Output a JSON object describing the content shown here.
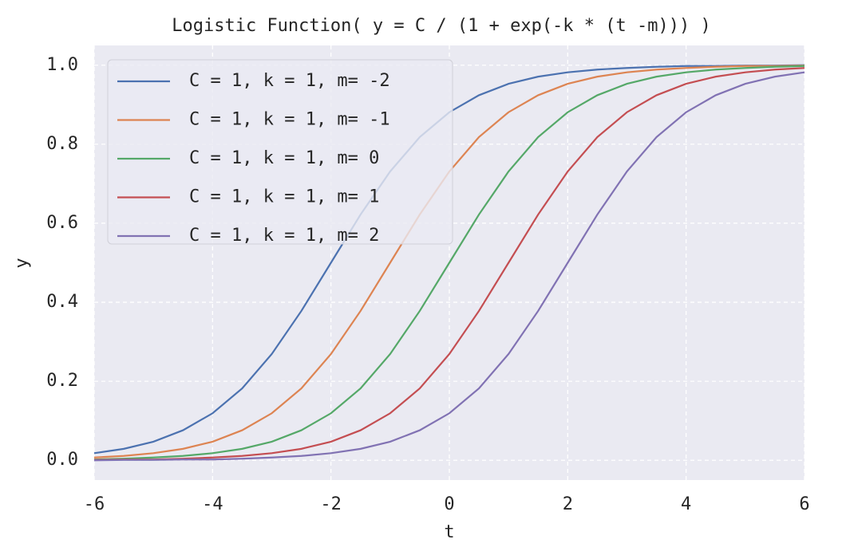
{
  "chart_data": {
    "type": "line",
    "title": "Logistic Function( y = C / (1 + exp(-k * (t -m))) )",
    "x_label": "t",
    "y_label": "y",
    "x": [
      -6,
      -5.5,
      -5,
      -4.5,
      -4,
      -3.5,
      -3,
      -2.5,
      -2,
      -1.5,
      -1,
      -0.5,
      0,
      0.5,
      1,
      1.5,
      2,
      2.5,
      3,
      3.5,
      4,
      4.5,
      5,
      5.5,
      6
    ],
    "series": [
      {
        "name": "C = 1, k = 1, m= -2",
        "color": "#4c72b0",
        "values": [
          0.018,
          0.029,
          0.047,
          0.076,
          0.119,
          0.182,
          0.269,
          0.378,
          0.5,
          0.622,
          0.731,
          0.818,
          0.881,
          0.924,
          0.953,
          0.971,
          0.982,
          0.989,
          0.993,
          0.996,
          0.998,
          0.998,
          0.999,
          0.999,
          1.0
        ]
      },
      {
        "name": "C = 1, k = 1, m= -1",
        "color": "#dd8452",
        "values": [
          0.007,
          0.011,
          0.018,
          0.029,
          0.047,
          0.076,
          0.119,
          0.182,
          0.269,
          0.378,
          0.5,
          0.622,
          0.731,
          0.818,
          0.881,
          0.924,
          0.953,
          0.971,
          0.982,
          0.989,
          0.993,
          0.996,
          0.998,
          0.998,
          0.999
        ]
      },
      {
        "name": "C = 1, k = 1, m= 0",
        "color": "#55a868",
        "values": [
          0.002,
          0.004,
          0.007,
          0.011,
          0.018,
          0.029,
          0.047,
          0.076,
          0.119,
          0.182,
          0.269,
          0.378,
          0.5,
          0.622,
          0.731,
          0.818,
          0.881,
          0.924,
          0.953,
          0.971,
          0.982,
          0.989,
          0.993,
          0.996,
          0.998
        ]
      },
      {
        "name": "C = 1, k = 1, m= 1",
        "color": "#c44e52",
        "values": [
          0.001,
          0.002,
          0.002,
          0.004,
          0.007,
          0.011,
          0.018,
          0.029,
          0.047,
          0.076,
          0.119,
          0.182,
          0.269,
          0.378,
          0.5,
          0.622,
          0.731,
          0.818,
          0.881,
          0.924,
          0.953,
          0.971,
          0.982,
          0.989,
          0.993
        ]
      },
      {
        "name": "C = 1, k = 1, m= 2",
        "color": "#8172b3",
        "values": [
          0,
          0.001,
          0.001,
          0.002,
          0.002,
          0.004,
          0.007,
          0.011,
          0.018,
          0.029,
          0.047,
          0.076,
          0.119,
          0.182,
          0.269,
          0.378,
          0.5,
          0.622,
          0.731,
          0.818,
          0.881,
          0.924,
          0.953,
          0.971,
          0.982
        ]
      }
    ],
    "xlim": [
      -6,
      6
    ],
    "xticks": [
      -6,
      -4,
      -2,
      0,
      2,
      4,
      6
    ],
    "ylim": [
      -0.05,
      1.05
    ],
    "yticks": [
      {
        "value": 0,
        "label": "0.0"
      },
      {
        "value": 0.2,
        "label": "0.2"
      },
      {
        "value": 0.4,
        "label": "0.4"
      },
      {
        "value": 0.6,
        "label": "0.6"
      },
      {
        "value": 0.8,
        "label": "0.8"
      },
      {
        "value": 1.0,
        "label": "1.0"
      }
    ],
    "grid": true,
    "legend": "upper-left"
  }
}
